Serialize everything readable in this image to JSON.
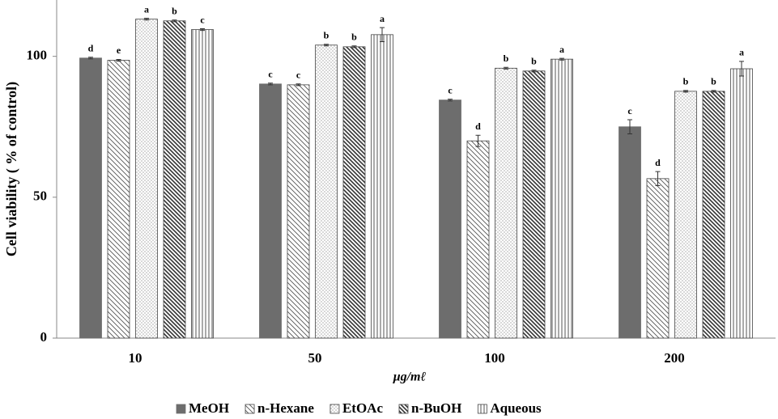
{
  "chart_data": {
    "type": "bar",
    "y_label": "Cell viability ( % of control)",
    "x_label": "μg/mℓ",
    "categories": [
      "10",
      "50",
      "100",
      "200"
    ],
    "ylim": [
      0,
      120
    ],
    "yticks": [
      0,
      50,
      100
    ],
    "grid": false,
    "legend": "bottom",
    "series": [
      {
        "name": "MeOH",
        "color": "#6d6d6d",
        "pattern": "solid",
        "values": [
          99.4,
          90.2,
          84.5,
          75.0
        ],
        "errors": [
          0.3,
          0.3,
          0.3,
          2.5
        ],
        "labels": [
          "d",
          "c",
          "c",
          "c"
        ]
      },
      {
        "name": "n-Hexane",
        "color": "#555555",
        "pattern": "diagonal",
        "values": [
          98.6,
          89.9,
          70.0,
          56.6
        ],
        "errors": [
          0.3,
          0.3,
          2.0,
          2.5
        ],
        "labels": [
          "e",
          "c",
          "d",
          "d"
        ]
      },
      {
        "name": "EtOAc",
        "color": "#777777",
        "pattern": "dots",
        "values": [
          113.2,
          104.0,
          95.8,
          87.6
        ],
        "errors": [
          0.3,
          0.3,
          0.3,
          0.3
        ],
        "labels": [
          "a",
          "b",
          "b",
          "b"
        ]
      },
      {
        "name": "n-BuOH",
        "color": "#333333",
        "pattern": "diagonal-dense",
        "values": [
          112.6,
          103.4,
          94.8,
          87.6
        ],
        "errors": [
          0.3,
          0.3,
          0.3,
          0.3
        ],
        "labels": [
          "b",
          "b",
          "b",
          "b"
        ]
      },
      {
        "name": "Aqueous",
        "color": "#555555",
        "pattern": "vertical",
        "values": [
          109.5,
          107.7,
          99.0,
          95.6
        ],
        "errors": [
          0.3,
          2.5,
          0.3,
          2.6
        ],
        "labels": [
          "c",
          "a",
          "a",
          "a"
        ]
      }
    ]
  }
}
